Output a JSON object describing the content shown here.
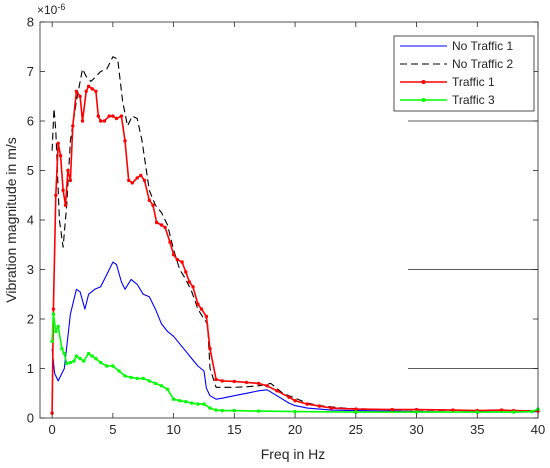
{
  "chart_data": {
    "type": "line",
    "title": "",
    "xlabel": "Freq in Hz",
    "ylabel": "Vibration magnitude in m/s",
    "xlim": [
      -1,
      40
    ],
    "ylim": [
      0,
      8
    ],
    "y_exponent_label": "×10^-6",
    "y_exponent_base": "×10",
    "y_exponent_power": "-6",
    "x_ticks": [
      0,
      5,
      10,
      15,
      20,
      25,
      30,
      35,
      40
    ],
    "y_ticks": [
      0,
      1,
      2,
      3,
      4,
      5,
      6,
      7,
      8
    ],
    "x_tick_labels": [
      "0",
      "5",
      "10",
      "15",
      "20",
      "25",
      "30",
      "35",
      "40"
    ],
    "y_tick_labels": [
      "0",
      "1",
      "2",
      "3",
      "4",
      "5",
      "6",
      "7",
      "8"
    ],
    "grid": false,
    "legend_position": "top-right",
    "reference_lines": [
      {
        "y": 6,
        "x_from": 29.3,
        "x_to": 40
      },
      {
        "y": 3,
        "x_from": 29.3,
        "x_to": 40
      },
      {
        "y": 1,
        "x_from": 29.3,
        "x_to": 40
      }
    ],
    "series": [
      {
        "name": "No Traffic 1",
        "color": "#0000ff",
        "dash": "solid",
        "marker": "none",
        "x": [
          0,
          0.2,
          0.5,
          1.0,
          1.5,
          2.0,
          2.3,
          2.7,
          3.0,
          3.5,
          4.0,
          4.5,
          5.0,
          5.3,
          5.7,
          6.0,
          6.5,
          7.0,
          7.5,
          8.0,
          8.5,
          9.0,
          9.5,
          10.0,
          10.5,
          11.0,
          11.5,
          12.0,
          12.5,
          12.7,
          13.0,
          13.5,
          14.0,
          15.0,
          16.0,
          17.0,
          17.7,
          18.5,
          19.5,
          20.0,
          21.0,
          22.0,
          23.0,
          25.0,
          28.0,
          30.0,
          33.0,
          35.0,
          37.0,
          39.0,
          40.0
        ],
        "y": [
          1.4,
          0.9,
          0.75,
          1.0,
          2.1,
          2.6,
          2.55,
          2.2,
          2.5,
          2.6,
          2.65,
          2.9,
          3.15,
          3.1,
          2.75,
          2.6,
          2.8,
          2.7,
          2.5,
          2.45,
          2.2,
          1.9,
          1.75,
          1.65,
          1.5,
          1.35,
          1.2,
          1.05,
          0.95,
          0.6,
          0.45,
          0.38,
          0.4,
          0.45,
          0.5,
          0.55,
          0.57,
          0.45,
          0.3,
          0.25,
          0.2,
          0.18,
          0.16,
          0.15,
          0.14,
          0.13,
          0.12,
          0.13,
          0.12,
          0.12,
          0.13
        ]
      },
      {
        "name": "No Traffic 2",
        "color": "#000000",
        "dash": "dashed",
        "marker": "none",
        "x": [
          0,
          0.15,
          0.3,
          0.6,
          0.9,
          1.2,
          1.5,
          2.0,
          2.5,
          2.8,
          3.2,
          3.6,
          4.0,
          4.5,
          5.0,
          5.4,
          5.8,
          6.2,
          6.6,
          7.0,
          7.4,
          8.0,
          8.5,
          9.0,
          9.5,
          10.0,
          10.5,
          11.0,
          11.5,
          12.0,
          12.5,
          12.8,
          13.0,
          13.5,
          14.0,
          15.0,
          16.0,
          17.0,
          18.0,
          19.0,
          20.0,
          21.0,
          22.0,
          24.0,
          26.0,
          30.0,
          35.0,
          38.0,
          40.0
        ],
        "y": [
          5.4,
          6.25,
          5.8,
          4.0,
          3.45,
          4.3,
          5.6,
          6.4,
          7.05,
          6.9,
          6.8,
          6.9,
          7.0,
          7.05,
          7.3,
          7.25,
          6.4,
          5.9,
          6.1,
          6.05,
          5.6,
          4.6,
          4.3,
          4.15,
          3.9,
          3.4,
          3.0,
          2.8,
          2.55,
          2.2,
          2.0,
          1.9,
          1.0,
          0.62,
          0.62,
          0.62,
          0.63,
          0.65,
          0.7,
          0.5,
          0.4,
          0.3,
          0.25,
          0.2,
          0.18,
          0.16,
          0.15,
          0.15,
          0.15
        ]
      },
      {
        "name": "Traffic 1",
        "color": "#ff0000",
        "dash": "solid",
        "marker": "dot",
        "x": [
          0,
          0.1,
          0.3,
          0.5,
          0.7,
          0.9,
          1.1,
          1.3,
          1.5,
          1.7,
          2.0,
          2.3,
          2.5,
          2.8,
          3.0,
          3.3,
          3.6,
          3.8,
          4.0,
          4.3,
          4.7,
          5.0,
          5.3,
          5.7,
          6.0,
          6.3,
          6.6,
          7.0,
          7.3,
          7.6,
          8.0,
          8.3,
          8.6,
          9.0,
          9.3,
          9.7,
          10.0,
          10.3,
          10.7,
          11.0,
          11.3,
          11.6,
          12.0,
          12.3,
          12.7,
          13.0,
          13.5,
          14.0,
          15.0,
          16.0,
          17.0,
          17.7,
          18.5,
          19.5,
          20.0,
          21.0,
          22.0,
          23.0,
          25.0,
          28.0,
          30.0,
          33.0,
          35.0,
          37.0,
          38.0,
          40.0
        ],
        "y": [
          0.1,
          2.2,
          4.5,
          5.55,
          5.3,
          4.6,
          4.3,
          5.0,
          4.8,
          5.9,
          6.6,
          6.5,
          6.0,
          6.6,
          6.7,
          6.65,
          6.6,
          6.1,
          6.0,
          6.0,
          6.1,
          6.1,
          6.05,
          6.1,
          5.6,
          4.8,
          4.75,
          4.85,
          4.9,
          4.8,
          4.4,
          4.3,
          3.95,
          3.9,
          3.85,
          3.55,
          3.3,
          3.2,
          3.15,
          2.95,
          2.75,
          2.65,
          2.3,
          2.2,
          2.05,
          1.4,
          0.78,
          0.75,
          0.74,
          0.72,
          0.7,
          0.65,
          0.55,
          0.42,
          0.35,
          0.28,
          0.24,
          0.2,
          0.18,
          0.17,
          0.17,
          0.16,
          0.15,
          0.16,
          0.15,
          0.14
        ]
      },
      {
        "name": "Traffic 3",
        "color": "#00ff00",
        "dash": "solid",
        "marker": "dot",
        "x": [
          0,
          0.1,
          0.3,
          0.5,
          0.8,
          1.0,
          1.2,
          1.5,
          1.8,
          2.0,
          2.3,
          2.6,
          3.0,
          3.3,
          3.6,
          4.0,
          4.5,
          5.0,
          5.5,
          6.0,
          6.5,
          7.0,
          7.5,
          8.0,
          8.5,
          9.0,
          9.5,
          10.0,
          10.5,
          11.0,
          11.5,
          12.0,
          12.5,
          13.0,
          13.5,
          14.0,
          15.0,
          17.0,
          20.0,
          25.0,
          30.0,
          35.0,
          38.0,
          39.5,
          40.0
        ],
        "y": [
          1.55,
          2.1,
          1.75,
          1.85,
          1.4,
          1.3,
          1.1,
          1.12,
          1.15,
          1.25,
          1.2,
          1.15,
          1.3,
          1.25,
          1.2,
          1.12,
          1.05,
          1.05,
          0.95,
          0.85,
          0.82,
          0.8,
          0.8,
          0.75,
          0.7,
          0.65,
          0.58,
          0.38,
          0.35,
          0.33,
          0.3,
          0.28,
          0.28,
          0.2,
          0.16,
          0.15,
          0.15,
          0.14,
          0.13,
          0.12,
          0.12,
          0.12,
          0.12,
          0.13,
          0.18
        ]
      }
    ]
  }
}
